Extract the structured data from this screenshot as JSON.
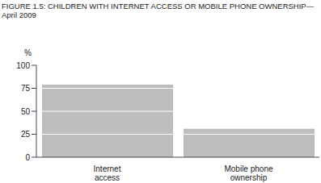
{
  "chart_data": {
    "type": "bar",
    "title": "FIGURE 1.5: CHILDREN WITH INTERNET ACCESS OR MOBILE PHONE OWNERSHIP—April 2009",
    "ylabel": "%",
    "categories": [
      "Internet access",
      "Mobile phone ownership"
    ],
    "values": [
      79,
      31
    ],
    "color": "#bdbdbd",
    "ylim": [
      0,
      100
    ],
    "yticks": [
      0,
      25,
      50,
      75,
      100
    ],
    "grid": true
  }
}
